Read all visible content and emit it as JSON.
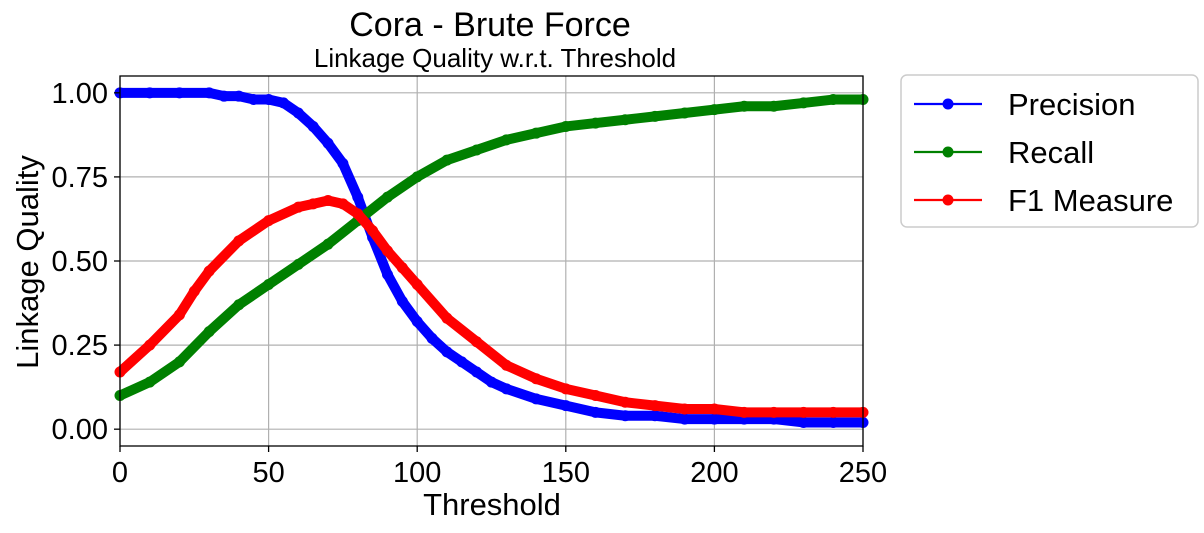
{
  "chart_data": {
    "type": "line",
    "title": "Cora - Brute Force",
    "subtitle": "Linkage Quality w.r.t. Threshold",
    "xlabel": "Threshold",
    "ylabel": "Linkage Quality",
    "xlim": [
      0,
      250
    ],
    "ylim": [
      -0.05,
      1.05
    ],
    "xticks": [
      "0",
      "50",
      "100",
      "150",
      "200",
      "250"
    ],
    "yticks": [
      "0.00",
      "0.25",
      "0.50",
      "0.75",
      "1.00"
    ],
    "grid": true,
    "legend_position": "outside-right",
    "series": [
      {
        "name": "Precision",
        "color": "#0000ff",
        "x": [
          0,
          10,
          20,
          30,
          35,
          40,
          45,
          50,
          55,
          60,
          65,
          70,
          75,
          80,
          85,
          90,
          95,
          100,
          105,
          110,
          115,
          120,
          125,
          130,
          140,
          150,
          160,
          170,
          180,
          190,
          200,
          210,
          220,
          230,
          240,
          250
        ],
        "y": [
          1.0,
          1.0,
          1.0,
          1.0,
          0.99,
          0.99,
          0.98,
          0.98,
          0.97,
          0.94,
          0.9,
          0.85,
          0.79,
          0.69,
          0.57,
          0.46,
          0.38,
          0.32,
          0.27,
          0.23,
          0.2,
          0.17,
          0.14,
          0.12,
          0.09,
          0.07,
          0.05,
          0.04,
          0.04,
          0.03,
          0.03,
          0.03,
          0.03,
          0.02,
          0.02,
          0.02
        ]
      },
      {
        "name": "Recall",
        "color": "#008000",
        "x": [
          0,
          10,
          20,
          30,
          40,
          50,
          60,
          70,
          80,
          90,
          100,
          110,
          120,
          130,
          140,
          150,
          160,
          170,
          180,
          190,
          200,
          210,
          220,
          230,
          240,
          250
        ],
        "y": [
          0.1,
          0.14,
          0.2,
          0.29,
          0.37,
          0.43,
          0.49,
          0.55,
          0.62,
          0.69,
          0.75,
          0.8,
          0.83,
          0.86,
          0.88,
          0.9,
          0.91,
          0.92,
          0.93,
          0.94,
          0.95,
          0.96,
          0.96,
          0.97,
          0.98,
          0.98
        ]
      },
      {
        "name": "F1 Measure",
        "color": "#ff0000",
        "x": [
          0,
          10,
          20,
          25,
          30,
          40,
          50,
          60,
          65,
          70,
          75,
          80,
          85,
          90,
          95,
          100,
          110,
          120,
          130,
          140,
          150,
          160,
          170,
          180,
          190,
          200,
          210,
          220,
          230,
          240,
          250
        ],
        "y": [
          0.17,
          0.25,
          0.34,
          0.41,
          0.47,
          0.56,
          0.62,
          0.66,
          0.67,
          0.68,
          0.67,
          0.64,
          0.59,
          0.53,
          0.48,
          0.43,
          0.33,
          0.26,
          0.19,
          0.15,
          0.12,
          0.1,
          0.08,
          0.07,
          0.06,
          0.06,
          0.05,
          0.05,
          0.05,
          0.05,
          0.05
        ]
      }
    ]
  }
}
